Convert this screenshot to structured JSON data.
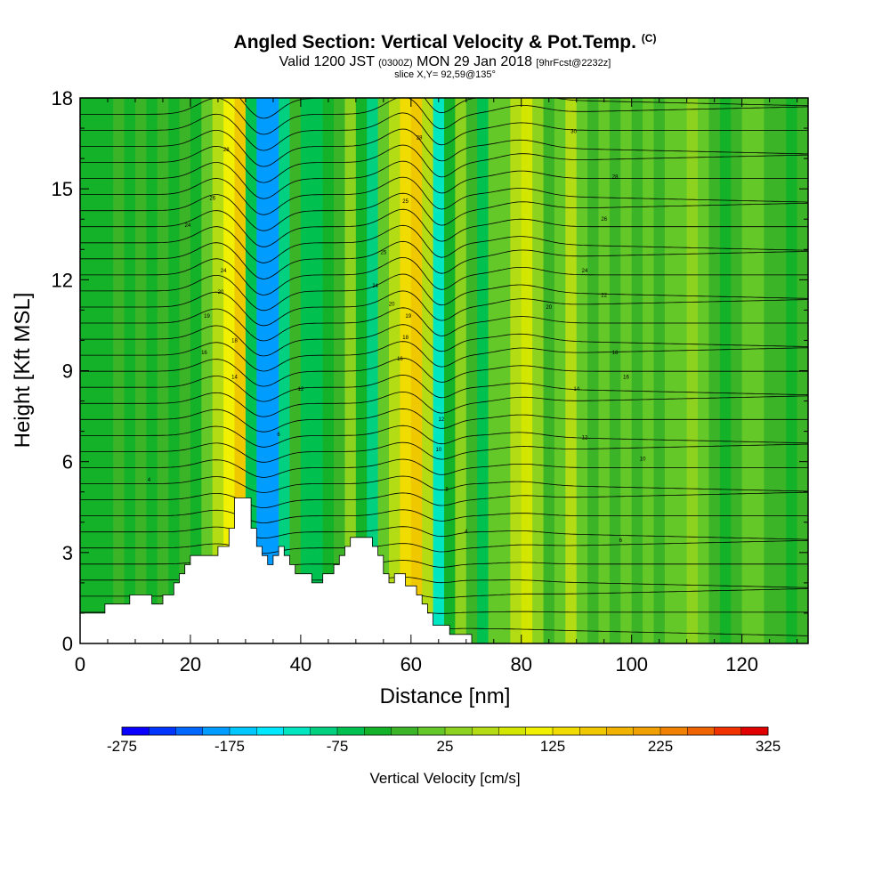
{
  "header": {
    "title": "Angled Section: Vertical Velocity & Pot.Temp.",
    "title_mark": "(C)",
    "valid_prefix": "Valid 1200 JST",
    "valid_zulu": "(0300Z)",
    "valid_date": "MON 29 Jan 2018",
    "forecast": "[9hrFcst@2232z]",
    "slice": "slice X,Y= 92,59@135°"
  },
  "chart_data": {
    "type": "heatmap",
    "xlabel": "Distance [nm]",
    "ylabel": "Height [Kft MSL]",
    "xlim": [
      0,
      132
    ],
    "ylim": [
      0,
      18
    ],
    "xticks": [
      "0",
      "20",
      "40",
      "60",
      "80",
      "100",
      "120"
    ],
    "xtick_values": [
      0,
      20,
      40,
      60,
      80,
      100,
      120
    ],
    "yticks": [
      "0",
      "3",
      "6",
      "9",
      "12",
      "15",
      "18"
    ],
    "ytick_values": [
      0,
      3,
      6,
      9,
      12,
      15,
      18
    ],
    "colorbar": {
      "title": "Vertical Velocity [cm/s]",
      "min": -275,
      "max": 325,
      "step": 25,
      "tick_labels": [
        "-275",
        "-175",
        "-75",
        "25",
        "125",
        "225",
        "325"
      ],
      "tick_values": [
        -275,
        -175,
        -75,
        25,
        125,
        225,
        325
      ],
      "colors": [
        "#0a00ff",
        "#0034ff",
        "#0068ff",
        "#009cff",
        "#00c8ff",
        "#00e8ff",
        "#00e6c0",
        "#00d080",
        "#00c050",
        "#14b228",
        "#3cb428",
        "#64c828",
        "#8cd21e",
        "#b4dc14",
        "#d2e600",
        "#f0f000",
        "#f0dc00",
        "#f0c800",
        "#f0b400",
        "#f0a000",
        "#f08200",
        "#f06400",
        "#f03200",
        "#e00000",
        "#c8002a",
        "#b40050",
        "#a0006e",
        "#7a0088",
        "#5a0096"
      ]
    },
    "velocity_bands": [
      {
        "x": 0,
        "v": -40
      },
      {
        "x": 2,
        "v": -30
      },
      {
        "x": 4,
        "v": -35
      },
      {
        "x": 6,
        "v": -25
      },
      {
        "x": 8,
        "v": -30
      },
      {
        "x": 10,
        "v": -20
      },
      {
        "x": 12,
        "v": -45
      },
      {
        "x": 14,
        "v": -10
      },
      {
        "x": 16,
        "v": -30
      },
      {
        "x": 18,
        "v": -15
      },
      {
        "x": 20,
        "v": -35
      },
      {
        "x": 22,
        "v": 10
      },
      {
        "x": 24,
        "v": 60
      },
      {
        "x": 26,
        "v": 120
      },
      {
        "x": 28,
        "v": 150
      },
      {
        "x": 30,
        "v": -60
      },
      {
        "x": 32,
        "v": -180
      },
      {
        "x": 34,
        "v": -200
      },
      {
        "x": 36,
        "v": -90
      },
      {
        "x": 38,
        "v": -20
      },
      {
        "x": 40,
        "v": -60
      },
      {
        "x": 42,
        "v": -70
      },
      {
        "x": 44,
        "v": -40
      },
      {
        "x": 46,
        "v": -10
      },
      {
        "x": 48,
        "v": 30
      },
      {
        "x": 50,
        "v": -40
      },
      {
        "x": 52,
        "v": -80
      },
      {
        "x": 54,
        "v": 20
      },
      {
        "x": 56,
        "v": 70
      },
      {
        "x": 58,
        "v": 140
      },
      {
        "x": 60,
        "v": 150
      },
      {
        "x": 62,
        "v": 60
      },
      {
        "x": 64,
        "v": -110
      },
      {
        "x": 66,
        "v": -50
      },
      {
        "x": 68,
        "v": 40
      },
      {
        "x": 70,
        "v": -20
      },
      {
        "x": 72,
        "v": -60
      },
      {
        "x": 74,
        "v": 0
      },
      {
        "x": 76,
        "v": 20
      },
      {
        "x": 78,
        "v": 60
      },
      {
        "x": 80,
        "v": 90
      },
      {
        "x": 82,
        "v": 40
      },
      {
        "x": 84,
        "v": -20
      },
      {
        "x": 86,
        "v": 20
      },
      {
        "x": 88,
        "v": 60
      },
      {
        "x": 90,
        "v": 10
      },
      {
        "x": 92,
        "v": -10
      },
      {
        "x": 94,
        "v": 0
      },
      {
        "x": 96,
        "v": -20
      },
      {
        "x": 98,
        "v": 5
      },
      {
        "x": 100,
        "v": -15
      },
      {
        "x": 102,
        "v": 10
      },
      {
        "x": 104,
        "v": -10
      },
      {
        "x": 106,
        "v": 5
      },
      {
        "x": 108,
        "v": 20
      },
      {
        "x": 110,
        "v": 30
      },
      {
        "x": 112,
        "v": 10
      },
      {
        "x": 114,
        "v": -5
      },
      {
        "x": 116,
        "v": -30
      },
      {
        "x": 118,
        "v": -15
      },
      {
        "x": 120,
        "v": 0
      },
      {
        "x": 122,
        "v": 10
      },
      {
        "x": 124,
        "v": -20
      },
      {
        "x": 126,
        "v": -10
      },
      {
        "x": 128,
        "v": -30
      },
      {
        "x": 130,
        "v": -10
      }
    ],
    "terrain": [
      [
        0,
        1.0
      ],
      [
        4.5,
        1.0
      ],
      [
        4.5,
        1.3
      ],
      [
        9,
        1.3
      ],
      [
        9,
        1.6
      ],
      [
        13,
        1.6
      ],
      [
        13,
        1.3
      ],
      [
        15,
        1.3
      ],
      [
        15,
        1.6
      ],
      [
        17,
        1.6
      ],
      [
        17,
        2.0
      ],
      [
        18,
        2.0
      ],
      [
        18,
        2.3
      ],
      [
        19,
        2.3
      ],
      [
        19,
        2.6
      ],
      [
        20,
        2.6
      ],
      [
        20,
        2.9
      ],
      [
        25,
        2.9
      ],
      [
        25,
        3.2
      ],
      [
        27,
        3.2
      ],
      [
        27,
        3.8
      ],
      [
        28,
        3.8
      ],
      [
        28,
        4.8
      ],
      [
        31,
        4.8
      ],
      [
        31,
        3.8
      ],
      [
        32,
        3.8
      ],
      [
        32,
        3.2
      ],
      [
        33,
        3.2
      ],
      [
        33,
        2.9
      ],
      [
        34,
        2.9
      ],
      [
        34,
        2.6
      ],
      [
        35,
        2.6
      ],
      [
        35,
        2.9
      ],
      [
        36,
        2.9
      ],
      [
        36,
        3.2
      ],
      [
        37,
        3.2
      ],
      [
        37,
        2.9
      ],
      [
        38,
        2.9
      ],
      [
        38,
        2.6
      ],
      [
        39,
        2.6
      ],
      [
        39,
        2.3
      ],
      [
        42,
        2.3
      ],
      [
        42,
        2.0
      ],
      [
        44,
        2.0
      ],
      [
        44,
        2.3
      ],
      [
        46,
        2.3
      ],
      [
        46,
        2.6
      ],
      [
        47,
        2.6
      ],
      [
        47,
        2.9
      ],
      [
        48,
        2.9
      ],
      [
        48,
        3.2
      ],
      [
        49,
        3.2
      ],
      [
        49,
        3.5
      ],
      [
        53,
        3.5
      ],
      [
        53,
        3.2
      ],
      [
        54,
        3.2
      ],
      [
        54,
        2.9
      ],
      [
        55,
        2.9
      ],
      [
        55,
        2.3
      ],
      [
        56,
        2.3
      ],
      [
        56,
        2.0
      ],
      [
        57,
        2.0
      ],
      [
        57,
        2.3
      ],
      [
        59,
        2.3
      ],
      [
        59,
        1.9
      ],
      [
        61,
        1.9
      ],
      [
        61,
        1.6
      ],
      [
        62,
        1.6
      ],
      [
        62,
        1.3
      ],
      [
        63,
        1.3
      ],
      [
        63,
        1.0
      ],
      [
        64,
        1.0
      ],
      [
        64,
        0.6
      ],
      [
        67,
        0.6
      ],
      [
        67,
        0.3
      ],
      [
        71,
        0.3
      ],
      [
        71,
        0
      ]
    ],
    "isentropes": {
      "count": 34,
      "base_height": 0.5,
      "spacing": 0.53,
      "labels": [
        {
          "x": 12.5,
          "y": 5.4,
          "text": "4"
        },
        {
          "x": 36,
          "y": 6.9,
          "text": "6"
        },
        {
          "x": 66.5,
          "y": 5.1,
          "text": "8"
        },
        {
          "x": 70,
          "y": 3.7,
          "text": "4"
        },
        {
          "x": 98,
          "y": 3.4,
          "text": "6"
        },
        {
          "x": 65,
          "y": 6.4,
          "text": "10"
        },
        {
          "x": 102,
          "y": 6.1,
          "text": "10"
        },
        {
          "x": 65.5,
          "y": 7.4,
          "text": "12"
        },
        {
          "x": 91.5,
          "y": 6.8,
          "text": "12"
        },
        {
          "x": 40,
          "y": 8.4,
          "text": "12"
        },
        {
          "x": 28,
          "y": 8.8,
          "text": "14"
        },
        {
          "x": 90,
          "y": 8.4,
          "text": "14"
        },
        {
          "x": 22.5,
          "y": 9.6,
          "text": "16"
        },
        {
          "x": 58,
          "y": 9.4,
          "text": "16"
        },
        {
          "x": 99,
          "y": 8.8,
          "text": "16"
        },
        {
          "x": 28,
          "y": 10.0,
          "text": "18"
        },
        {
          "x": 59,
          "y": 10.1,
          "text": "18"
        },
        {
          "x": 97,
          "y": 9.6,
          "text": "18"
        },
        {
          "x": 23,
          "y": 10.8,
          "text": "19"
        },
        {
          "x": 59.5,
          "y": 10.8,
          "text": "19"
        },
        {
          "x": 56.5,
          "y": 11.2,
          "text": "20"
        },
        {
          "x": 85,
          "y": 11.1,
          "text": "20"
        },
        {
          "x": 25.5,
          "y": 11.6,
          "text": "20"
        },
        {
          "x": 95,
          "y": 11.5,
          "text": "22"
        },
        {
          "x": 53.5,
          "y": 11.8,
          "text": "24"
        },
        {
          "x": 91.5,
          "y": 12.3,
          "text": "24"
        },
        {
          "x": 26,
          "y": 12.3,
          "text": "24"
        },
        {
          "x": 55,
          "y": 12.9,
          "text": "25"
        },
        {
          "x": 19.5,
          "y": 13.8,
          "text": "24"
        },
        {
          "x": 95,
          "y": 14.0,
          "text": "26"
        },
        {
          "x": 59,
          "y": 14.6,
          "text": "25"
        },
        {
          "x": 24,
          "y": 14.7,
          "text": "26"
        },
        {
          "x": 97,
          "y": 15.4,
          "text": "28"
        },
        {
          "x": 61.5,
          "y": 16.7,
          "text": "28"
        },
        {
          "x": 26.5,
          "y": 16.3,
          "text": "28"
        },
        {
          "x": 89.5,
          "y": 16.9,
          "text": "30"
        }
      ]
    }
  }
}
